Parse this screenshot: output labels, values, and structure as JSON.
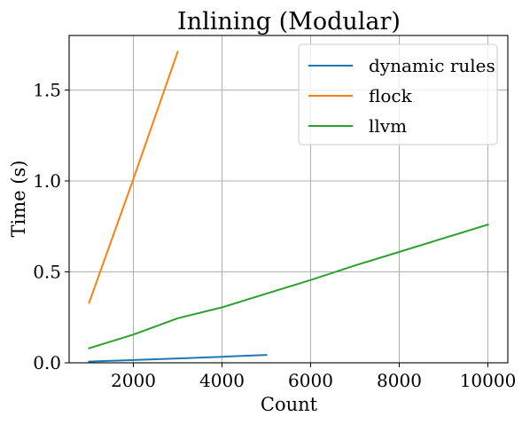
{
  "chart_data": {
    "type": "line",
    "title": "Inlining (Modular)",
    "xlabel": "Count",
    "ylabel": "Time (s)",
    "xlim": [
      550,
      10450
    ],
    "ylim": [
      0,
      1.8
    ],
    "xticks": [
      2000,
      4000,
      6000,
      8000,
      10000
    ],
    "xtick_labels": [
      "2000",
      "4000",
      "6000",
      "8000",
      "10000"
    ],
    "yticks": [
      0.0,
      0.5,
      1.0,
      1.5
    ],
    "ytick_labels": [
      "0.0",
      "0.5",
      "1.0",
      "1.5"
    ],
    "grid": true,
    "legend_position": "top-right",
    "series": [
      {
        "name": "dynamic rules",
        "color": "#1f77b4",
        "x": [
          1000,
          2000,
          3000,
          4000,
          5000
        ],
        "y": [
          0.007,
          0.015,
          0.024,
          0.033,
          0.043
        ]
      },
      {
        "name": "flock",
        "color": "#ff7f0e",
        "x": [
          1000,
          2000,
          3000
        ],
        "y": [
          0.33,
          1.01,
          1.71
        ]
      },
      {
        "name": "llvm",
        "color": "#2ca02c",
        "x": [
          1000,
          2000,
          3000,
          4000,
          5000,
          6000,
          7000,
          8000,
          9000,
          10000
        ],
        "y": [
          0.08,
          0.155,
          0.245,
          0.305,
          0.38,
          0.455,
          0.535,
          0.61,
          0.685,
          0.76
        ]
      }
    ]
  }
}
